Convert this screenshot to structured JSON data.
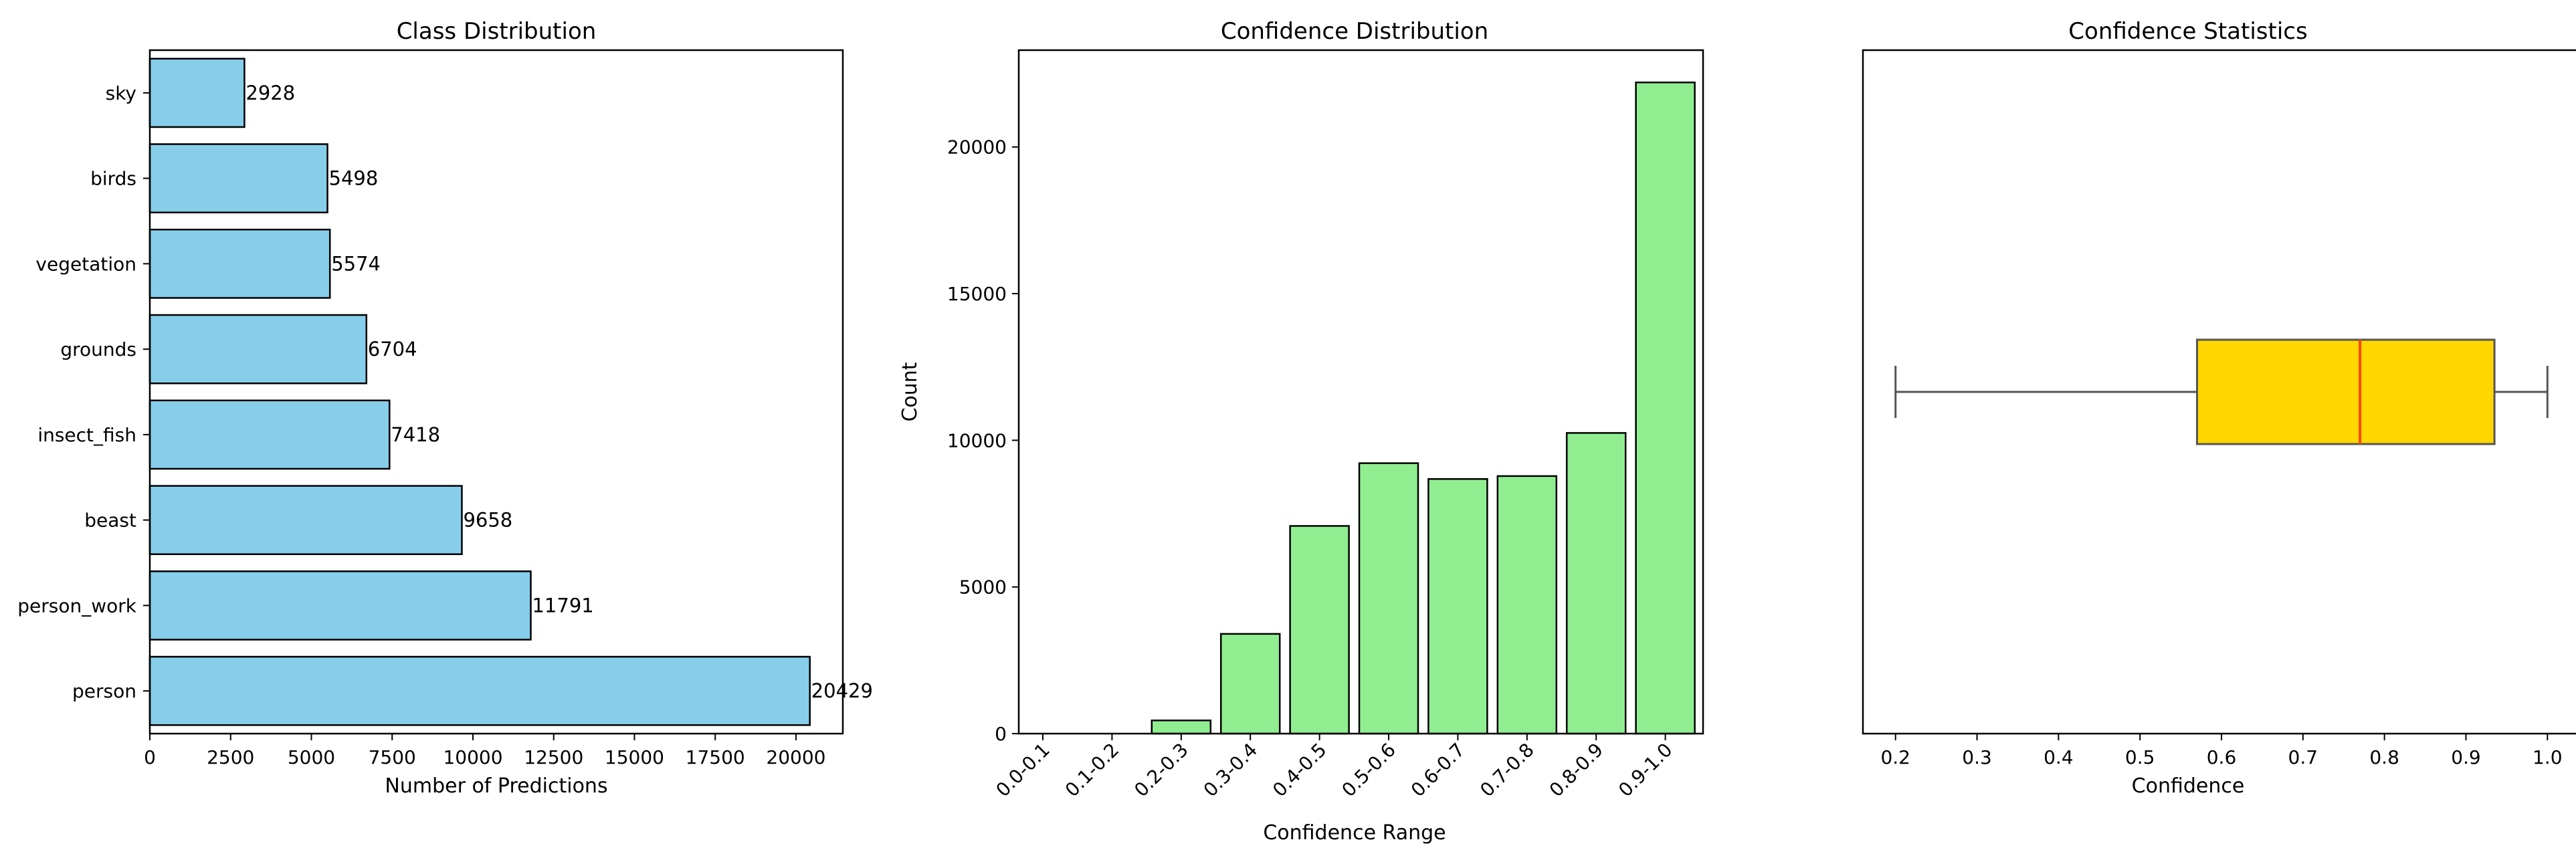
{
  "colors": {
    "bar_h": "#87ceeb",
    "bar_v": "#90ee90",
    "box_fill": "#ffd700",
    "median": "#ff4500",
    "edge": "#000000",
    "whisker": "#555555"
  },
  "chart_data": [
    {
      "type": "bar",
      "orientation": "horizontal",
      "title": "Class Distribution",
      "xlabel": "Number of Predictions",
      "ylabel": "",
      "categories": [
        "person",
        "person_work",
        "beast",
        "insect_fish",
        "grounds",
        "vegetation",
        "birds",
        "sky"
      ],
      "values": [
        20429,
        11791,
        9658,
        7418,
        6704,
        5574,
        5498,
        2928
      ],
      "data_labels": [
        "20429",
        "11791",
        "9658",
        "7418",
        "6704",
        "5574",
        "5498",
        "2928"
      ],
      "xlim": [
        0,
        21450
      ],
      "xticks": [
        0,
        2500,
        5000,
        7500,
        10000,
        12500,
        15000,
        17500,
        20000
      ],
      "xtick_labels": [
        "0",
        "2500",
        "5000",
        "7500",
        "10000",
        "12500",
        "15000",
        "17500",
        "20000"
      ],
      "grid": false
    },
    {
      "type": "bar",
      "orientation": "vertical",
      "title": "Confidence Distribution",
      "xlabel": "Confidence Range",
      "ylabel": "Count",
      "categories": [
        "0.0-0.1",
        "0.1-0.2",
        "0.2-0.3",
        "0.3-0.4",
        "0.4-0.5",
        "0.5-0.6",
        "0.6-0.7",
        "0.7-0.8",
        "0.8-0.9",
        "0.9-1.0"
      ],
      "values": [
        0,
        0,
        450,
        3400,
        7080,
        9220,
        8680,
        8780,
        10250,
        22200
      ],
      "ylim": [
        0,
        23300
      ],
      "yticks": [
        0,
        5000,
        10000,
        15000,
        20000
      ],
      "ytick_labels": [
        "0",
        "5000",
        "10000",
        "15000",
        "20000"
      ],
      "grid": false
    },
    {
      "type": "box",
      "orientation": "horizontal",
      "title": "Confidence Statistics",
      "xlabel": "Confidence",
      "ylabel": "",
      "stats": {
        "whisker_low": 0.2,
        "q1": 0.57,
        "median": 0.77,
        "q3": 0.935,
        "whisker_high": 1.0
      },
      "xlim": [
        0.16,
        1.04
      ],
      "xticks": [
        0.2,
        0.3,
        0.4,
        0.5,
        0.6,
        0.7,
        0.8,
        0.9,
        1.0
      ],
      "xtick_labels": [
        "0.2",
        "0.3",
        "0.4",
        "0.5",
        "0.6",
        "0.7",
        "0.8",
        "0.9",
        "1.0"
      ],
      "grid": false
    }
  ]
}
